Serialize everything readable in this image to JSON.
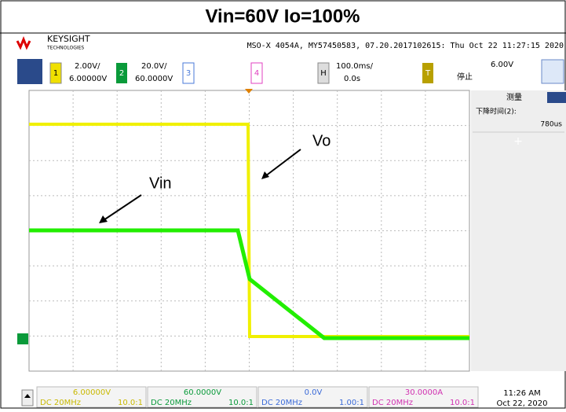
{
  "title": "Vin=60V  Io=100%",
  "header": {
    "brand": "KEYSIGHT",
    "sub": "TECHNOLOGIES",
    "info": "MSO-X 4054A, MY57450583, 07.20.2017102615: Thu Oct 22 11:27:15 2020"
  },
  "channels": [
    {
      "num": "1",
      "scale": "2.00V/",
      "offset": "6.00000V"
    },
    {
      "num": "2",
      "scale": "20.0V/",
      "offset": "60.0000V"
    },
    {
      "num": "3"
    },
    {
      "num": "4"
    }
  ],
  "horizontal": {
    "key": "H",
    "scale": "100.0ms/",
    "delay": "0.0s"
  },
  "trigger": {
    "key": "T",
    "level": "6.00V",
    "state": "停止"
  },
  "measure": {
    "title": "测量",
    "name": "下降时间(2):",
    "value": "780us"
  },
  "annotations": {
    "vo": "Vo",
    "vin": "Vin"
  },
  "bottom": [
    {
      "offset": "6.00000V",
      "coupling": "DC 20MHz",
      "probe": "10.0:1"
    },
    {
      "offset": "60.0000V",
      "coupling": "DC 20MHz",
      "probe": "10.0:1"
    },
    {
      "offset": "0.0V",
      "coupling": "DC 20MHz",
      "probe": "1.00:1"
    },
    {
      "offset": "30.0000A",
      "coupling": "DC 20MHz",
      "probe": "10.0:1"
    }
  ],
  "clock": {
    "time": "11:26 AM",
    "date": "Oct 22, 2020"
  }
}
